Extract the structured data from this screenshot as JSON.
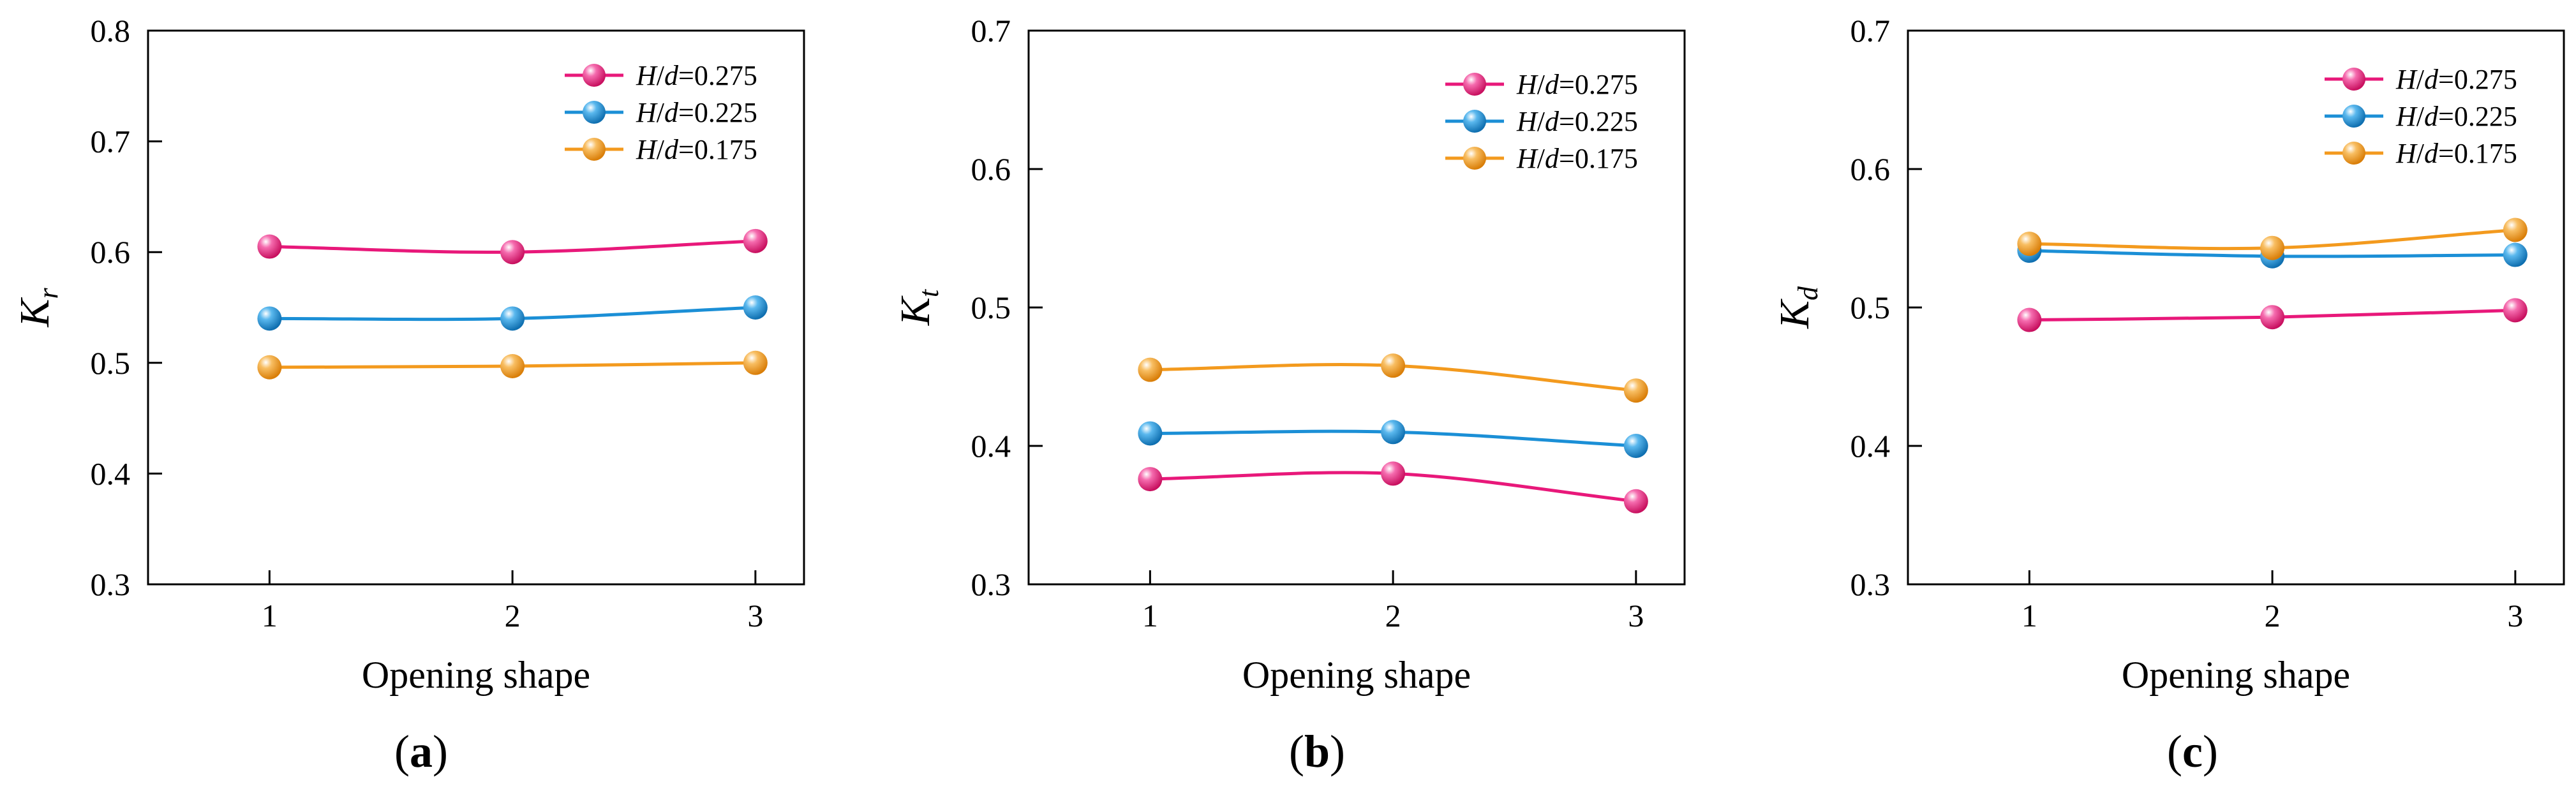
{
  "chart_data": [
    {
      "type": "line",
      "panel_label": {
        "open": "(",
        "letter": "a",
        "close": ")"
      },
      "xlabel": "Opening shape",
      "ylabel": {
        "main": "K",
        "sub": "r"
      },
      "x": [
        1,
        2,
        3
      ],
      "xticks": [
        "1",
        "2",
        "3"
      ],
      "xlim": [
        0.5,
        3.2
      ],
      "ylim": [
        0.3,
        0.8
      ],
      "yticks": [
        "0.3",
        "0.4",
        "0.5",
        "0.6",
        "0.7",
        "0.8"
      ],
      "legend_position": "top-right",
      "series": [
        {
          "name": "H/d=0.275",
          "legend": {
            "h": "H",
            "slash": "/",
            "d": "d",
            "value": "=0.275"
          },
          "color": "#E8187A",
          "values": [
            0.605,
            0.6,
            0.61
          ]
        },
        {
          "name": "H/d=0.225",
          "legend": {
            "h": "H",
            "slash": "/",
            "d": "d",
            "value": "=0.225"
          },
          "color": "#1B8FD6",
          "values": [
            0.54,
            0.54,
            0.55
          ]
        },
        {
          "name": "H/d=0.175",
          "legend": {
            "h": "H",
            "slash": "/",
            "d": "d",
            "value": "=0.175"
          },
          "color": "#F39A1E",
          "values": [
            0.496,
            0.497,
            0.5
          ]
        }
      ]
    },
    {
      "type": "line",
      "panel_label": {
        "open": "(",
        "letter": "b",
        "close": ")"
      },
      "xlabel": "Opening shape",
      "ylabel": {
        "main": "K",
        "sub": "t"
      },
      "x": [
        1,
        2,
        3
      ],
      "xticks": [
        "1",
        "2",
        "3"
      ],
      "xlim": [
        0.5,
        3.2
      ],
      "ylim": [
        0.3,
        0.7
      ],
      "yticks": [
        "0.3",
        "0.4",
        "0.5",
        "0.6",
        "0.7"
      ],
      "legend_position": "top-right",
      "series": [
        {
          "name": "H/d=0.275",
          "legend": {
            "h": "H",
            "slash": "/",
            "d": "d",
            "value": "=0.275"
          },
          "color": "#E8187A",
          "values": [
            0.376,
            0.38,
            0.36
          ]
        },
        {
          "name": "H/d=0.225",
          "legend": {
            "h": "H",
            "slash": "/",
            "d": "d",
            "value": "=0.225"
          },
          "color": "#1B8FD6",
          "values": [
            0.409,
            0.41,
            0.4
          ]
        },
        {
          "name": "H/d=0.175",
          "legend": {
            "h": "H",
            "slash": "/",
            "d": "d",
            "value": "=0.175"
          },
          "color": "#F39A1E",
          "values": [
            0.455,
            0.458,
            0.44
          ]
        }
      ]
    },
    {
      "type": "line",
      "panel_label": {
        "open": "(",
        "letter": "c",
        "close": ")"
      },
      "xlabel": "Opening shape",
      "ylabel": {
        "main": "K",
        "sub": "d"
      },
      "x": [
        1,
        2,
        3
      ],
      "xticks": [
        "1",
        "2",
        "3"
      ],
      "xlim": [
        0.5,
        3.2
      ],
      "ylim": [
        0.3,
        0.7
      ],
      "yticks": [
        "0.3",
        "0.4",
        "0.5",
        "0.6",
        "0.7"
      ],
      "legend_position": "top-right",
      "series": [
        {
          "name": "H/d=0.275",
          "legend": {
            "h": "H",
            "slash": "/",
            "d": "d",
            "value": "=0.275"
          },
          "color": "#E8187A",
          "values": [
            0.491,
            0.493,
            0.498
          ]
        },
        {
          "name": "H/d=0.225",
          "legend": {
            "h": "H",
            "slash": "/",
            "d": "d",
            "value": "=0.225"
          },
          "color": "#1B8FD6",
          "values": [
            0.541,
            0.537,
            0.538
          ]
        },
        {
          "name": "H/d=0.175",
          "legend": {
            "h": "H",
            "slash": "/",
            "d": "d",
            "value": "=0.175"
          },
          "color": "#F39A1E",
          "values": [
            0.546,
            0.543,
            0.556
          ]
        }
      ]
    }
  ]
}
